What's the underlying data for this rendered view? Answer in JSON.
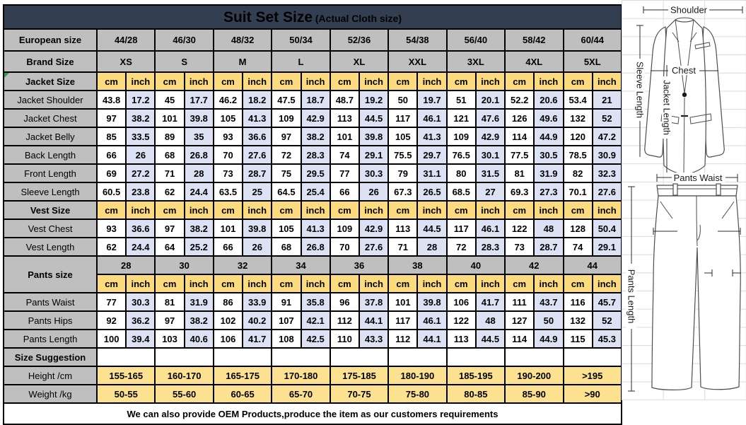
{
  "title": {
    "main": "Suit Set Size",
    "sub": "(Actual Cloth size)"
  },
  "header": {
    "european_label": "European size",
    "european_sizes": [
      "44/28",
      "46/30",
      "48/32",
      "50/34",
      "52/36",
      "54/38",
      "56/40",
      "58/42",
      "60/44"
    ],
    "brand_label": "Brand Size",
    "brand_sizes": [
      "XS",
      "S",
      "M",
      "L",
      "XL",
      "XXL",
      "3XL",
      "4XL",
      "5XL"
    ],
    "unit_cm": "cm",
    "unit_inch": "inch"
  },
  "sections": [
    {
      "label": "Jacket Size",
      "type": "units",
      "corner_mark": true,
      "rows": [
        {
          "label": "Jacket Shoulder",
          "values": [
            [
              "43.8",
              "17.2"
            ],
            [
              "45",
              "17.7"
            ],
            [
              "46.2",
              "18.2"
            ],
            [
              "47.5",
              "18.7"
            ],
            [
              "48.7",
              "19.2"
            ],
            [
              "50",
              "19.7"
            ],
            [
              "51",
              "20.1"
            ],
            [
              "52.2",
              "20.6"
            ],
            [
              "53.4",
              "21"
            ]
          ]
        },
        {
          "label": "Jacket Chest",
          "values": [
            [
              "97",
              "38.2"
            ],
            [
              "101",
              "39.8"
            ],
            [
              "105",
              "41.3"
            ],
            [
              "109",
              "42.9"
            ],
            [
              "113",
              "44.5"
            ],
            [
              "117",
              "46.1"
            ],
            [
              "121",
              "47.6"
            ],
            [
              "126",
              "49.6"
            ],
            [
              "132",
              "52"
            ]
          ]
        },
        {
          "label": "Jacket Belly",
          "values": [
            [
              "85",
              "33.5"
            ],
            [
              "89",
              "35"
            ],
            [
              "93",
              "36.6"
            ],
            [
              "97",
              "38.2"
            ],
            [
              "101",
              "39.8"
            ],
            [
              "105",
              "41.3"
            ],
            [
              "109",
              "42.9"
            ],
            [
              "114",
              "44.9"
            ],
            [
              "120",
              "47.2"
            ]
          ]
        },
        {
          "label": "Back Length",
          "values": [
            [
              "66",
              "26"
            ],
            [
              "68",
              "26.8"
            ],
            [
              "70",
              "27.6"
            ],
            [
              "72",
              "28.3"
            ],
            [
              "74",
              "29.1"
            ],
            [
              "75.5",
              "29.7"
            ],
            [
              "76.5",
              "30.1"
            ],
            [
              "77.5",
              "30.5"
            ],
            [
              "78.5",
              "30.9"
            ]
          ]
        },
        {
          "label": "Front Length",
          "values": [
            [
              "69",
              "27.2"
            ],
            [
              "71",
              "28"
            ],
            [
              "73",
              "28.7"
            ],
            [
              "75",
              "29.5"
            ],
            [
              "77",
              "30.3"
            ],
            [
              "79",
              "31.1"
            ],
            [
              "80",
              "31.5"
            ],
            [
              "81",
              "31.9"
            ],
            [
              "82",
              "32.3"
            ]
          ]
        },
        {
          "label": "Sleeve Length",
          "values": [
            [
              "60.5",
              "23.8"
            ],
            [
              "62",
              "24.4"
            ],
            [
              "63.5",
              "25"
            ],
            [
              "64.5",
              "25.4"
            ],
            [
              "66",
              "26"
            ],
            [
              "67.3",
              "26.5"
            ],
            [
              "68.5",
              "27"
            ],
            [
              "69.3",
              "27.3"
            ],
            [
              "70.1",
              "27.6"
            ]
          ]
        }
      ]
    },
    {
      "label": "Vest Size",
      "type": "units",
      "rows": [
        {
          "label": "Vest Chest",
          "values": [
            [
              "93",
              "36.6"
            ],
            [
              "97",
              "38.2"
            ],
            [
              "101",
              "39.8"
            ],
            [
              "105",
              "41.3"
            ],
            [
              "109",
              "42.9"
            ],
            [
              "113",
              "44.5"
            ],
            [
              "117",
              "46.1"
            ],
            [
              "122",
              "48"
            ],
            [
              "128",
              "50.4"
            ]
          ]
        },
        {
          "label": "Vest Length",
          "values": [
            [
              "62",
              "24.4"
            ],
            [
              "64",
              "25.2"
            ],
            [
              "66",
              "26"
            ],
            [
              "68",
              "26.8"
            ],
            [
              "70",
              "27.6"
            ],
            [
              "71",
              "28"
            ],
            [
              "72",
              "28.3"
            ],
            [
              "73",
              "28.7"
            ],
            [
              "74",
              "29.1"
            ]
          ]
        }
      ]
    },
    {
      "label": "Pants size",
      "type": "pants",
      "sizes": [
        "28",
        "30",
        "32",
        "34",
        "36",
        "38",
        "40",
        "42",
        "44"
      ],
      "rows": [
        {
          "label": "Pants Waist",
          "values": [
            [
              "77",
              "30.3"
            ],
            [
              "81",
              "31.9"
            ],
            [
              "86",
              "33.9"
            ],
            [
              "91",
              "35.8"
            ],
            [
              "96",
              "37.8"
            ],
            [
              "101",
              "39.8"
            ],
            [
              "106",
              "41.7"
            ],
            [
              "111",
              "43.7"
            ],
            [
              "116",
              "45.7"
            ]
          ]
        },
        {
          "label": "Pants Hips",
          "values": [
            [
              "92",
              "36.2"
            ],
            [
              "97",
              "38.2"
            ],
            [
              "102",
              "40.2"
            ],
            [
              "107",
              "42.1"
            ],
            [
              "112",
              "44.1"
            ],
            [
              "117",
              "46.1"
            ],
            [
              "122",
              "48"
            ],
            [
              "127",
              "50"
            ],
            [
              "132",
              "52"
            ]
          ]
        },
        {
          "label": "Pants Length",
          "values": [
            [
              "100",
              "39.4"
            ],
            [
              "103",
              "40.6"
            ],
            [
              "106",
              "41.7"
            ],
            [
              "108",
              "42.5"
            ],
            [
              "110",
              "43.3"
            ],
            [
              "112",
              "44.1"
            ],
            [
              "113",
              "44.5"
            ],
            [
              "114",
              "44.9"
            ],
            [
              "115",
              "45.3"
            ]
          ]
        }
      ]
    },
    {
      "label": "Size Suggestion",
      "type": "suggestion",
      "rows": [
        {
          "label": "Height /cm",
          "values": [
            "155-165",
            "160-170",
            "165-175",
            "170-180",
            "175-185",
            "180-190",
            "185-195",
            "190-200",
            ">195"
          ]
        },
        {
          "label": "Weight /kg",
          "values": [
            "50-55",
            "55-60",
            "60-65",
            "65-70",
            "70-75",
            "75-80",
            "80-85",
            "85-90",
            ">90"
          ]
        }
      ]
    }
  ],
  "footer": "We can also provide OEM Products,produce the item as our customers requirements",
  "diagram": {
    "shoulder": "Shoulder",
    "chest": "Chest",
    "jacket_length": "Jacket Length",
    "sleeve_length": "Sleeve Length",
    "pants_waist": "Pants Waist",
    "pants_length": "Pants Length"
  },
  "colors": {
    "title_bar": "#333F50",
    "header_gray": "#BFBFBF",
    "unit_yellow": "#FBDB7E",
    "inch_blue": "#DCE2F3",
    "suggestion_yellow": "#FCE190",
    "table_border": "#000000",
    "faint_grid": "#D3DCE9",
    "corner_mark_green": "#2E9E46"
  }
}
